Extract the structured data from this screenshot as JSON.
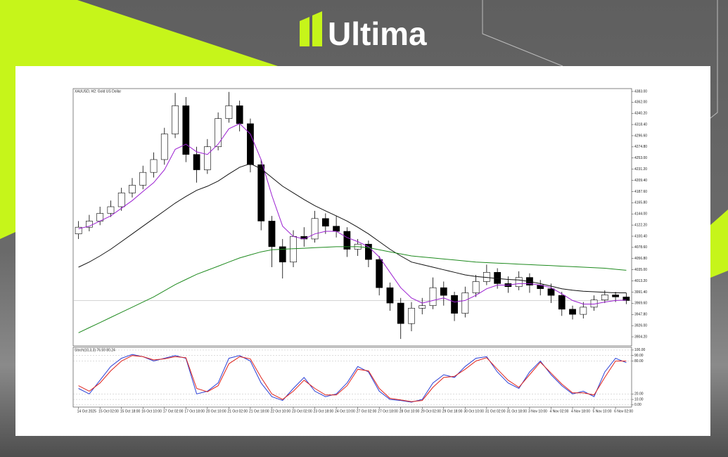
{
  "brand": {
    "name": "Ultima"
  },
  "chart_data": [
    {
      "type": "candlestick",
      "title": "XAUUSD, H2:  Gold US Dollar",
      "categories": [
        "14 Oct 2025",
        null,
        "15 Oct 02:00",
        null,
        "15 Oct 18:00",
        null,
        "16 Oct 10:00",
        null,
        "17 Oct 02:00",
        null,
        "17 Oct 18:00",
        null,
        "20 Oct 10:00",
        null,
        "21 Oct 02:00",
        null,
        "21 Oct 18:00",
        null,
        "22 Oct 10:00",
        null,
        "23 Oct 02:00",
        null,
        "23 Oct 18:00",
        null,
        "24 Oct 10:00",
        null,
        "27 Oct 02:00",
        null,
        "27 Oct 18:00",
        null,
        "28 Oct 10:00",
        null,
        "29 Oct 02:00",
        null,
        "29 Oct 18:00",
        null,
        "30 Oct 10:00",
        null,
        "31 Oct 02:00",
        null,
        "31 Oct 18:00",
        null,
        "3 Nov 10:00",
        null,
        "4 Nov 02:00",
        null,
        "4 Nov 18:00",
        null,
        "5 Nov 10:00",
        null,
        "6 Nov 02:00",
        null
      ],
      "open": [
        4105,
        4118,
        4130,
        4145,
        4158,
        4185,
        4200,
        4225,
        4250,
        4300,
        4355,
        4260,
        4230,
        4275,
        4330,
        4355,
        4320,
        4240,
        4130,
        4080,
        4050,
        4100,
        4095,
        4135,
        4120,
        4110,
        4075,
        4085,
        4055,
        4000,
        3970,
        3930,
        3960,
        3965,
        4000,
        3985,
        3950,
        3990,
        4012,
        4030,
        4008,
        4002,
        4020,
        4005,
        3998,
        3985,
        3958,
        3948,
        3962,
        3976,
        3986,
        3982
      ],
      "high": [
        4130,
        4142,
        4158,
        4170,
        4195,
        4214,
        4238,
        4264,
        4312,
        4380,
        4372,
        4275,
        4290,
        4342,
        4382,
        4365,
        4330,
        4250,
        4140,
        4095,
        4112,
        4118,
        4150,
        4145,
        4140,
        4118,
        4095,
        4092,
        4062,
        4010,
        3980,
        3972,
        3980,
        4020,
        4012,
        3992,
        4002,
        4025,
        4045,
        4038,
        4022,
        4032,
        4028,
        4015,
        4008,
        3992,
        3965,
        3972,
        3985,
        3995,
        3992,
        3990
      ],
      "low": [
        4095,
        4110,
        4122,
        4138,
        4150,
        4176,
        4192,
        4215,
        4240,
        4292,
        4245,
        4205,
        4222,
        4268,
        4322,
        4305,
        4225,
        4112,
        4040,
        4018,
        4040,
        4080,
        4088,
        4105,
        4098,
        4060,
        4062,
        4040,
        3985,
        3955,
        3900,
        3915,
        3948,
        3958,
        3965,
        3935,
        3942,
        3982,
        4005,
        3998,
        3990,
        3995,
        3990,
        3985,
        3970,
        3945,
        3938,
        3940,
        3955,
        3970,
        3972,
        3968
      ],
      "close": [
        4118,
        4130,
        4145,
        4158,
        4185,
        4200,
        4225,
        4250,
        4300,
        4355,
        4260,
        4230,
        4275,
        4330,
        4355,
        4320,
        4240,
        4130,
        4080,
        4050,
        4100,
        4095,
        4135,
        4120,
        4110,
        4075,
        4085,
        4055,
        4000,
        3970,
        3930,
        3960,
        3965,
        4000,
        3985,
        3950,
        3990,
        4012,
        4030,
        4008,
        4002,
        4020,
        4005,
        3998,
        3985,
        3958,
        3948,
        3962,
        3976,
        3986,
        3982,
        3975
      ],
      "up_color": "#ffffff",
      "down_color": "#000000",
      "series": [
        {
          "color": "#9b1fd1",
          "values": [
            4115,
            4120,
            4130,
            4140,
            4155,
            4170,
            4188,
            4205,
            4230,
            4270,
            4280,
            4265,
            4260,
            4280,
            4310,
            4320,
            4300,
            4250,
            4180,
            4120,
            4100,
            4095,
            4105,
            4110,
            4110,
            4098,
            4090,
            4080,
            4060,
            4030,
            4000,
            3980,
            3970,
            3975,
            3980,
            3972,
            3975,
            3985,
            3998,
            4005,
            4005,
            4008,
            4008,
            4005,
            4000,
            3988,
            3975,
            3968,
            3968,
            3972,
            3975,
            3976
          ]
        },
        {
          "color": "#111111",
          "values": [
            4040,
            4050,
            4062,
            4075,
            4090,
            4105,
            4120,
            4135,
            4150,
            4165,
            4178,
            4190,
            4198,
            4208,
            4222,
            4235,
            4242,
            4232,
            4215,
            4198,
            4185,
            4172,
            4160,
            4150,
            4140,
            4130,
            4118,
            4105,
            4090,
            4075,
            4062,
            4050,
            4045,
            4040,
            4035,
            4030,
            4025,
            4022,
            4020,
            4018,
            4016,
            4015,
            4012,
            4008,
            4003,
            3998,
            3995,
            3993,
            3992,
            3991,
            3990,
            3990
          ]
        },
        {
          "color": "#1e8a1e",
          "values": [
            3912,
            3922,
            3932,
            3942,
            3952,
            3962,
            3972,
            3982,
            3994,
            4006,
            4016,
            4026,
            4034,
            4042,
            4050,
            4058,
            4064,
            4070,
            4074,
            4075,
            4076,
            4077,
            4078,
            4079,
            4080,
            4080,
            4080,
            4078,
            4074,
            4070,
            4066,
            4062,
            4060,
            4058,
            4056,
            4054,
            4052,
            4050,
            4049,
            4048,
            4047,
            4046,
            4045,
            4044,
            4043,
            4042,
            4041,
            4040,
            4039,
            4038,
            4036,
            4034
          ]
        }
      ],
      "ylim": [
        3886.4,
        4388.5
      ],
      "yticks": [
        {
          "value": 4383,
          "label": "4383.00"
        },
        {
          "value": 4362,
          "label": "4362.00"
        },
        {
          "value": 4340.2,
          "label": "4340.20"
        },
        {
          "value": 4318.4,
          "label": "4318.40"
        },
        {
          "value": 4296.6,
          "label": "4296.60"
        },
        {
          "value": 4274.8,
          "label": "4274.80"
        },
        {
          "value": 4253,
          "label": "4253.00"
        },
        {
          "value": 4231.2,
          "label": "4231.20"
        },
        {
          "value": 4209.4,
          "label": "4209.40"
        },
        {
          "value": 4187.6,
          "label": "4187.60"
        },
        {
          "value": 4165.8,
          "label": "4165.80"
        },
        {
          "value": 4144,
          "label": "4144.00"
        },
        {
          "value": 4122.2,
          "label": "4122.20"
        },
        {
          "value": 4100.4,
          "label": "4100.40"
        },
        {
          "value": 4078.6,
          "label": "4078.60"
        },
        {
          "value": 4056.8,
          "label": "4056.80"
        },
        {
          "value": 4035,
          "label": "4035.00"
        },
        {
          "value": 4013.2,
          "label": "4013.20"
        },
        {
          "value": 3991.4,
          "label": "3991.40"
        },
        {
          "value": 3969.6,
          "label": "3969.60"
        },
        {
          "value": 3947.8,
          "label": "3947.80"
        },
        {
          "value": 3926,
          "label": "3926.00"
        },
        {
          "value": 3904.2,
          "label": "3904.20"
        }
      ]
    },
    {
      "type": "line",
      "title": "Stoch(10,3,3) 76.59 80.24",
      "series": [
        {
          "color": "#2a3fd6",
          "values": [
            30,
            20,
            45,
            70,
            85,
            92,
            88,
            80,
            85,
            90,
            85,
            20,
            25,
            40,
            85,
            90,
            80,
            40,
            15,
            8,
            30,
            50,
            25,
            15,
            20,
            40,
            70,
            60,
            25,
            10,
            8,
            5,
            10,
            40,
            55,
            50,
            70,
            85,
            88,
            60,
            40,
            30,
            60,
            80,
            55,
            35,
            20,
            25,
            15,
            60,
            85,
            77
          ]
        },
        {
          "color": "#e0241c",
          "values": [
            35,
            25,
            40,
            62,
            80,
            90,
            88,
            82,
            84,
            88,
            86,
            30,
            24,
            35,
            75,
            88,
            84,
            50,
            20,
            10,
            25,
            45,
            30,
            18,
            18,
            35,
            65,
            62,
            30,
            12,
            9,
            6,
            8,
            32,
            50,
            52,
            65,
            80,
            86,
            65,
            45,
            32,
            55,
            78,
            58,
            38,
            22,
            22,
            18,
            50,
            80,
            80
          ]
        }
      ],
      "ylim": [
        -4,
        105
      ],
      "yticks": [
        {
          "value": 100,
          "label": "100.00"
        },
        {
          "value": 90,
          "label": "90.00"
        },
        {
          "value": 80,
          "label": "80.00"
        },
        {
          "value": 20,
          "label": "20.00"
        },
        {
          "value": 10,
          "label": "10.00"
        },
        {
          "value": 0,
          "label": "0.00"
        }
      ]
    }
  ]
}
